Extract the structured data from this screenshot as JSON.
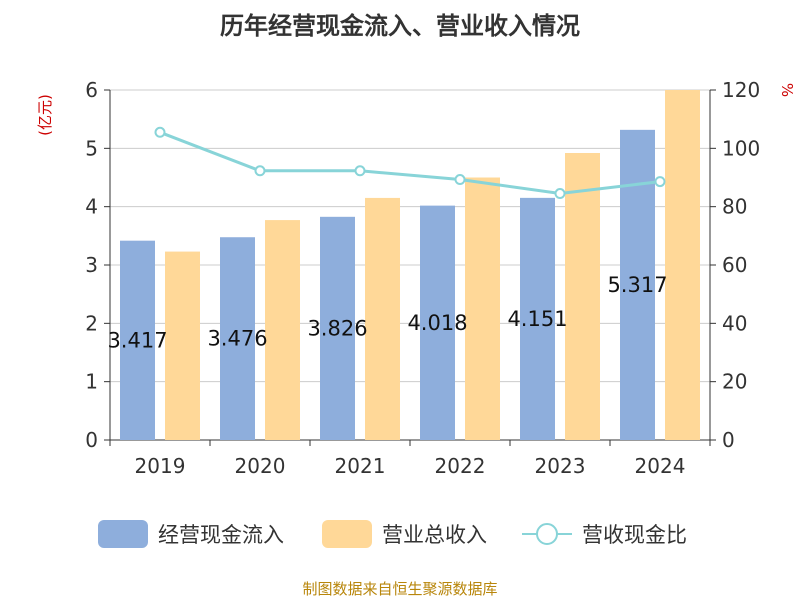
{
  "title": "历年经营现金流入、营业收入情况",
  "source": "制图数据来自恒生聚源数据库",
  "chart_data": {
    "type": "bar",
    "categories": [
      "2019",
      "2020",
      "2021",
      "2022",
      "2023",
      "2024"
    ],
    "series": [
      {
        "name": "经营现金流入",
        "type": "bar",
        "axis": "left",
        "color": "#8eaedc",
        "values": [
          3.417,
          3.476,
          3.826,
          4.018,
          4.151,
          5.317
        ],
        "labels": [
          "3.417",
          "3.476",
          "3.826",
          "4.018",
          "4.151",
          "5.317"
        ]
      },
      {
        "name": "营业总收入",
        "type": "bar",
        "axis": "left",
        "color": "#ffd898",
        "values": [
          3.23,
          3.77,
          4.15,
          4.5,
          4.92,
          6.0
        ]
      },
      {
        "name": "营收现金比",
        "type": "line",
        "axis": "right",
        "color": "#88d4d8",
        "values": [
          105.5,
          92.3,
          92.3,
          89.3,
          84.5,
          88.6
        ]
      }
    ],
    "y_left": {
      "unit": "(亿元)",
      "min": 0,
      "max": 6,
      "ticks": [
        "0",
        "1",
        "2",
        "3",
        "4",
        "5",
        "6"
      ]
    },
    "y_right": {
      "unit": "%",
      "min": 0,
      "max": 120,
      "ticks": [
        "0",
        "20",
        "40",
        "60",
        "80",
        "100",
        "120"
      ]
    },
    "grid": true,
    "legend": "bottom"
  }
}
